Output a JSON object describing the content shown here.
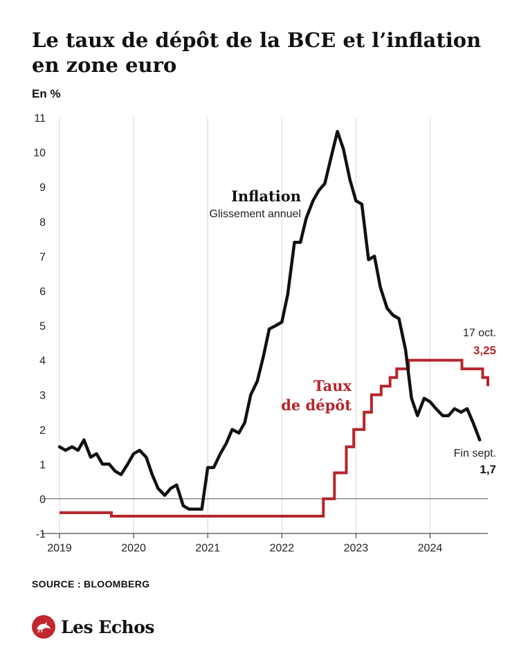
{
  "title": "Le taux de dépôt de la BCE et l’inflation en zone euro",
  "unit_label": "En %",
  "source": "SOURCE : BLOOMBERG",
  "brand": {
    "name": "Les Echos",
    "logo_icon": "les-echos-logo-icon"
  },
  "colors": {
    "inflation": "#111111",
    "taux": "#b5252b",
    "axis": "#222222",
    "grid": "#d4d4d4",
    "brand": "#c0282d"
  },
  "chart_data": {
    "type": "line",
    "title": "Le taux de dépôt de la BCE et l’inflation en zone euro",
    "ylabel": "En %",
    "ylim": [
      -1,
      11
    ],
    "xlim": [
      2019.0,
      2024.78
    ],
    "x_ticks": [
      2019,
      2020,
      2021,
      2022,
      2023,
      2024
    ],
    "y_ticks": [
      -1,
      0,
      1,
      2,
      3,
      4,
      5,
      6,
      7,
      8,
      9,
      10,
      11
    ],
    "grid": "vertical",
    "series": [
      {
        "name": "Inflation",
        "subtitle": "Glissement annuel",
        "color": "#111111",
        "step": false,
        "end_annotation": {
          "label": "Fin sept.",
          "value": "1,7"
        },
        "points": [
          [
            2019.0,
            1.5
          ],
          [
            2019.08,
            1.4
          ],
          [
            2019.17,
            1.5
          ],
          [
            2019.25,
            1.4
          ],
          [
            2019.33,
            1.7
          ],
          [
            2019.42,
            1.2
          ],
          [
            2019.5,
            1.3
          ],
          [
            2019.58,
            1.0
          ],
          [
            2019.67,
            1.0
          ],
          [
            2019.75,
            0.8
          ],
          [
            2019.83,
            0.7
          ],
          [
            2019.92,
            1.0
          ],
          [
            2020.0,
            1.3
          ],
          [
            2020.08,
            1.4
          ],
          [
            2020.17,
            1.2
          ],
          [
            2020.25,
            0.7
          ],
          [
            2020.33,
            0.3
          ],
          [
            2020.42,
            0.1
          ],
          [
            2020.5,
            0.3
          ],
          [
            2020.58,
            0.4
          ],
          [
            2020.67,
            -0.2
          ],
          [
            2020.75,
            -0.3
          ],
          [
            2020.83,
            -0.3
          ],
          [
            2020.92,
            -0.3
          ],
          [
            2021.0,
            0.9
          ],
          [
            2021.08,
            0.9
          ],
          [
            2021.17,
            1.3
          ],
          [
            2021.25,
            1.6
          ],
          [
            2021.33,
            2.0
          ],
          [
            2021.42,
            1.9
          ],
          [
            2021.5,
            2.2
          ],
          [
            2021.58,
            3.0
          ],
          [
            2021.67,
            3.4
          ],
          [
            2021.75,
            4.1
          ],
          [
            2021.83,
            4.9
          ],
          [
            2021.92,
            5.0
          ],
          [
            2022.0,
            5.1
          ],
          [
            2022.08,
            5.9
          ],
          [
            2022.17,
            7.4
          ],
          [
            2022.25,
            7.4
          ],
          [
            2022.33,
            8.1
          ],
          [
            2022.42,
            8.6
          ],
          [
            2022.5,
            8.9
          ],
          [
            2022.58,
            9.1
          ],
          [
            2022.67,
            9.9
          ],
          [
            2022.75,
            10.6
          ],
          [
            2022.83,
            10.1
          ],
          [
            2022.92,
            9.2
          ],
          [
            2023.0,
            8.6
          ],
          [
            2023.08,
            8.5
          ],
          [
            2023.17,
            6.9
          ],
          [
            2023.25,
            7.0
          ],
          [
            2023.33,
            6.1
          ],
          [
            2023.42,
            5.5
          ],
          [
            2023.5,
            5.3
          ],
          [
            2023.58,
            5.2
          ],
          [
            2023.67,
            4.3
          ],
          [
            2023.75,
            2.9
          ],
          [
            2023.83,
            2.4
          ],
          [
            2023.92,
            2.9
          ],
          [
            2024.0,
            2.8
          ],
          [
            2024.08,
            2.6
          ],
          [
            2024.17,
            2.4
          ],
          [
            2024.25,
            2.4
          ],
          [
            2024.33,
            2.6
          ],
          [
            2024.42,
            2.5
          ],
          [
            2024.5,
            2.6
          ],
          [
            2024.58,
            2.2
          ],
          [
            2024.67,
            1.7
          ]
        ]
      },
      {
        "name": "Taux de dépôt",
        "color": "#b5252b",
        "step": true,
        "end_annotation": {
          "label": "17 oct.",
          "value": "3,25"
        },
        "points": [
          [
            2019.0,
            -0.4
          ],
          [
            2019.7,
            -0.5
          ],
          [
            2022.56,
            0.0
          ],
          [
            2022.71,
            0.75
          ],
          [
            2022.87,
            1.5
          ],
          [
            2022.97,
            2.0
          ],
          [
            2023.11,
            2.5
          ],
          [
            2023.21,
            3.0
          ],
          [
            2023.34,
            3.25
          ],
          [
            2023.46,
            3.5
          ],
          [
            2023.55,
            3.75
          ],
          [
            2023.71,
            4.0
          ],
          [
            2024.43,
            3.75
          ],
          [
            2024.71,
            3.5
          ],
          [
            2024.78,
            3.25
          ]
        ]
      }
    ]
  }
}
